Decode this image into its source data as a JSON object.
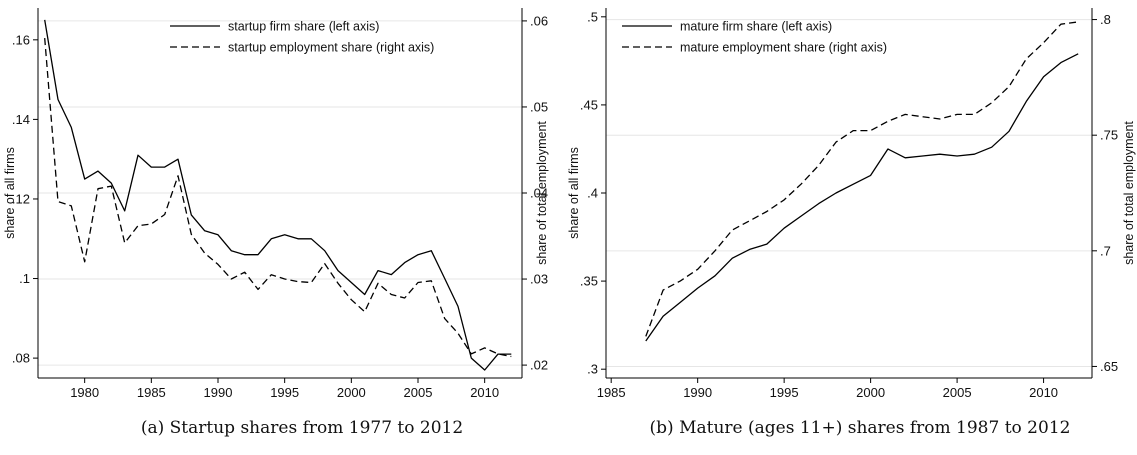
{
  "chart_data": [
    {
      "type": "line",
      "y_axes": {
        "left": {
          "label": "share of all firms",
          "ylim": [
            0.075,
            0.168
          ],
          "ticks": [
            0.08,
            0.1,
            0.12,
            0.14,
            0.16
          ],
          "tick_labels": [
            ".08",
            ".1",
            ".12",
            ".14",
            ".16"
          ]
        },
        "right": {
          "label": "share of total employment",
          "ylim": [
            0.0185,
            0.0615
          ],
          "ticks": [
            0.02,
            0.03,
            0.04,
            0.05,
            0.06
          ],
          "tick_labels": [
            ".02",
            ".03",
            ".04",
            ".05",
            ".06"
          ]
        }
      },
      "xlim": [
        1976.5,
        2012.8
      ],
      "xticks": [
        1980,
        1985,
        1990,
        1995,
        2000,
        2005,
        2010
      ],
      "grid": true,
      "legend_position": "top-right",
      "series": [
        {
          "name": "startup firm share (left axis)",
          "axis": "left",
          "style": "solid",
          "x": [
            1977,
            1978,
            1979,
            1980,
            1981,
            1982,
            1983,
            1984,
            1985,
            1986,
            1987,
            1988,
            1989,
            1990,
            1991,
            1992,
            1993,
            1994,
            1995,
            1996,
            1997,
            1998,
            1999,
            2000,
            2001,
            2002,
            2003,
            2004,
            2005,
            2006,
            2007,
            2008,
            2009,
            2010,
            2011,
            2012
          ],
          "values": [
            0.165,
            0.145,
            0.138,
            0.125,
            0.127,
            0.124,
            0.117,
            0.131,
            0.128,
            0.128,
            0.13,
            0.116,
            0.112,
            0.111,
            0.107,
            0.106,
            0.106,
            0.11,
            0.111,
            0.11,
            0.11,
            0.107,
            0.102,
            0.099,
            0.096,
            0.102,
            0.101,
            0.104,
            0.106,
            0.107,
            0.1,
            0.093,
            0.08,
            0.077,
            0.081,
            0.081
          ]
        },
        {
          "name": "startup employment share (right axis)",
          "axis": "right",
          "style": "dashed",
          "x": [
            1977,
            1978,
            1979,
            1980,
            1981,
            1982,
            1983,
            1984,
            1985,
            1986,
            1987,
            1988,
            1989,
            1990,
            1991,
            1992,
            1993,
            1994,
            1995,
            1996,
            1997,
            1998,
            1999,
            2000,
            2001,
            2002,
            2003,
            2004,
            2005,
            2006,
            2007,
            2008,
            2009,
            2010,
            2011,
            2012
          ],
          "values": [
            0.058,
            0.039,
            0.0385,
            0.032,
            0.0405,
            0.0408,
            0.0342,
            0.0362,
            0.0364,
            0.0375,
            0.042,
            0.0352,
            0.033,
            0.0317,
            0.03,
            0.0308,
            0.0288,
            0.0305,
            0.03,
            0.0297,
            0.0296,
            0.0318,
            0.0295,
            0.0276,
            0.0262,
            0.0295,
            0.0282,
            0.0278,
            0.0296,
            0.0298,
            0.0254,
            0.0237,
            0.0213,
            0.022,
            0.0213,
            0.021
          ]
        }
      ],
      "caption": "(a) Startup shares from 1977 to 2012"
    },
    {
      "type": "line",
      "y_axes": {
        "left": {
          "label": "share of all firms",
          "ylim": [
            0.295,
            0.505
          ],
          "ticks": [
            0.3,
            0.35,
            0.4,
            0.45,
            0.5
          ],
          "tick_labels": [
            ".3",
            ".35",
            ".4",
            ".45",
            ".5"
          ]
        },
        "right": {
          "label": "share of total employment",
          "ylim": [
            0.645,
            0.805
          ],
          "ticks": [
            0.65,
            0.7,
            0.75,
            0.8
          ],
          "tick_labels": [
            ".65",
            ".7",
            ".75",
            ".8"
          ]
        }
      },
      "xlim": [
        1984.7,
        2012.8
      ],
      "xticks": [
        1985,
        1990,
        1995,
        2000,
        2005,
        2010
      ],
      "grid": true,
      "legend_position": "top-left",
      "series": [
        {
          "name": "mature firm share (left axis)",
          "axis": "left",
          "style": "solid",
          "x": [
            1987,
            1988,
            1989,
            1990,
            1991,
            1992,
            1993,
            1994,
            1995,
            1996,
            1997,
            1998,
            1999,
            2000,
            2001,
            2002,
            2003,
            2004,
            2005,
            2006,
            2007,
            2008,
            2009,
            2010,
            2011,
            2012
          ],
          "values": [
            0.316,
            0.33,
            0.338,
            0.346,
            0.353,
            0.363,
            0.368,
            0.371,
            0.38,
            0.387,
            0.394,
            0.4,
            0.405,
            0.41,
            0.425,
            0.42,
            0.421,
            0.422,
            0.421,
            0.422,
            0.426,
            0.435,
            0.452,
            0.466,
            0.474,
            0.479
          ]
        },
        {
          "name": "mature employment share (right axis)",
          "axis": "right",
          "style": "dashed",
          "x": [
            1987,
            1988,
            1989,
            1990,
            1991,
            1992,
            1993,
            1994,
            1995,
            1996,
            1997,
            1998,
            1999,
            2000,
            2001,
            2002,
            2003,
            2004,
            2005,
            2006,
            2007,
            2008,
            2009,
            2010,
            2011,
            2012
          ],
          "values": [
            0.663,
            0.683,
            0.687,
            0.692,
            0.7,
            0.709,
            0.713,
            0.717,
            0.722,
            0.729,
            0.737,
            0.747,
            0.752,
            0.752,
            0.756,
            0.759,
            0.758,
            0.757,
            0.759,
            0.759,
            0.764,
            0.771,
            0.783,
            0.79,
            0.798,
            0.799
          ]
        }
      ],
      "caption": "(b) Mature (ages 11+) shares from 1987 to 2012"
    }
  ]
}
